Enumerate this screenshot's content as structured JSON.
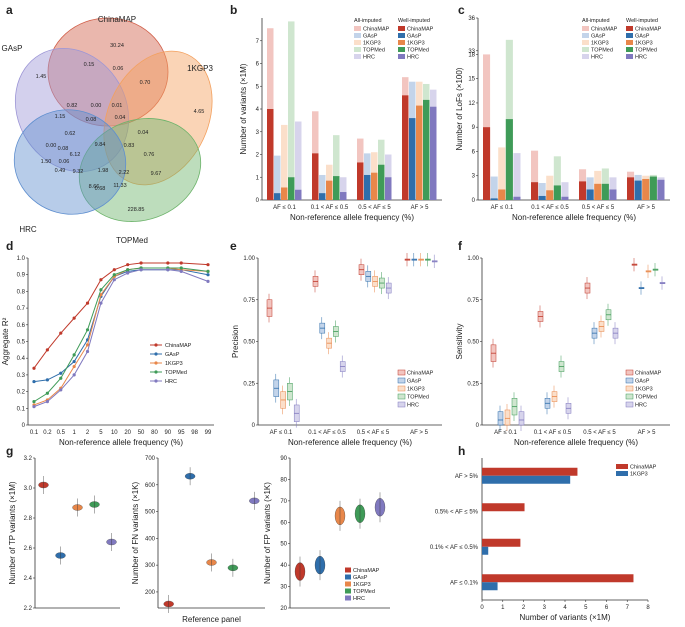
{
  "colors": {
    "chinamap": "#c0392b",
    "gasp": "#2f6eab",
    "kgp3": "#e8874a",
    "topmed": "#3f9b58",
    "hrc": "#8079bf",
    "chinamap_light": "#f2c5c0",
    "gasp_light": "#c3d4ea",
    "kgp3_light": "#fbdfca",
    "topmed_light": "#cfe6cf",
    "hrc_light": "#d7d4ec"
  },
  "panels": {
    "a": {
      "label": "a",
      "sets": [
        {
          "key": "chinamap",
          "name": "ChinaMAP",
          "color": "#d1604a"
        },
        {
          "key": "gasp",
          "name": "GAsP",
          "color": "#9d96d6"
        },
        {
          "key": "kgp3",
          "name": "1KGP3",
          "color": "#f3a05e"
        },
        {
          "key": "topmed",
          "name": "TOPMed",
          "color": "#6cb36a"
        },
        {
          "key": "hrc",
          "name": "HRC",
          "color": "#5f8fcf"
        }
      ],
      "regions": [
        "30.24",
        "1.45",
        "4.65",
        "228.85",
        "1.50",
        "0.15",
        "0.06",
        "0.70",
        "0.82",
        "0.00",
        "0.01",
        "1.15",
        "0.08",
        "0.04",
        "9.84",
        "0.04",
        "0.62",
        "0.83",
        "0.00",
        "0.08",
        "0.76",
        "0.06",
        "6.12",
        "9.67",
        "0.49",
        "9.32",
        "1.98",
        "2.22",
        "8.66",
        "0.68",
        "11.33"
      ]
    },
    "b": {
      "label": "b",
      "legend_all": "All-imputed",
      "legend_well": "Well-imputed",
      "legend_names": [
        "ChinaMAP",
        "GAsP",
        "1KGP3",
        "TOPMed",
        "HRC"
      ]
    },
    "c": {
      "label": "c"
    },
    "d": {
      "label": "d"
    },
    "e": {
      "label": "e"
    },
    "f": {
      "label": "f"
    },
    "g": {
      "label": "g"
    },
    "h": {
      "label": "h"
    }
  },
  "chart_data": [
    {
      "id": "b",
      "type": "bar",
      "title": "",
      "xlabel": "Non-reference allele frequency (%)",
      "ylabel": "Number of variants (×1M)",
      "ylim": [
        0,
        8
      ],
      "yticks": [
        "0",
        "1",
        "2",
        "3",
        "4",
        "5",
        "6",
        "7"
      ],
      "categories": [
        "AF ≤ 0.1",
        "0.1 < AF ≤ 0.5",
        "0.5 < AF ≤ 5",
        "AF > 5"
      ],
      "series": [
        {
          "name": "ChinaMAP",
          "all": [
            7.55,
            3.9,
            2.7,
            5.4
          ],
          "well": [
            4.0,
            2.05,
            1.65,
            4.6
          ]
        },
        {
          "name": "GAsP",
          "all": [
            1.95,
            1.1,
            2.05,
            5.2
          ],
          "well": [
            0.3,
            0.3,
            1.1,
            3.6
          ]
        },
        {
          "name": "1KGP3",
          "all": [
            3.3,
            1.55,
            2.1,
            5.2
          ],
          "well": [
            0.55,
            0.85,
            1.2,
            4.15
          ]
        },
        {
          "name": "TOPMed",
          "all": [
            7.85,
            2.85,
            2.65,
            5.1
          ],
          "well": [
            1.0,
            1.05,
            1.55,
            4.4
          ]
        },
        {
          "name": "HRC",
          "all": [
            3.45,
            1.0,
            2.0,
            4.85
          ],
          "well": [
            0.45,
            0.35,
            1.0,
            4.1
          ]
        }
      ]
    },
    {
      "id": "c",
      "type": "bar",
      "xlabel": "Non-reference allele frequency (%)",
      "ylabel": "Number of LoFs (×100)",
      "ylim": [
        0,
        36
      ],
      "yticks": [
        "0",
        "3",
        "6",
        "9",
        "12",
        "15",
        "18",
        "33",
        "36"
      ],
      "categories": [
        "AF ≤ 0.1",
        "0.1 < AF ≤ 0.5",
        "0.5 < AF ≤ 5",
        "AF > 5"
      ],
      "series": [
        {
          "name": "ChinaMAP",
          "all": [
            18.0,
            6.1,
            3.8,
            3.5
          ],
          "well": [
            9.0,
            2.2,
            2.3,
            2.8
          ]
        },
        {
          "name": "GAsP",
          "all": [
            2.9,
            2.1,
            2.8,
            3.1
          ],
          "well": [
            0.2,
            0.5,
            1.3,
            2.4
          ]
        },
        {
          "name": "1KGP3",
          "all": [
            6.5,
            3.0,
            3.6,
            3.0
          ],
          "well": [
            1.3,
            1.2,
            2.0,
            2.6
          ]
        },
        {
          "name": "TOPMed",
          "all": [
            34.0,
            5.4,
            3.9,
            3.1
          ],
          "well": [
            10.0,
            1.8,
            2.0,
            2.9
          ]
        },
        {
          "name": "HRC",
          "all": [
            5.8,
            2.2,
            2.8,
            2.8
          ],
          "well": [
            0.4,
            0.4,
            1.3,
            2.5
          ]
        }
      ]
    },
    {
      "id": "d",
      "type": "line",
      "xlabel": "Non-reference allele frequency (%)",
      "ylabel": "Aggregate R²",
      "ylim": [
        0,
        1
      ],
      "yticks": [
        "0",
        "0.1",
        "0.2",
        "0.3",
        "0.4",
        "0.5",
        "0.6",
        "0.7",
        "0.8",
        "0.9",
        "1.0"
      ],
      "x": [
        "0.1",
        "0.2",
        "0.5",
        "1",
        "2",
        "5",
        "10",
        "20",
        "50",
        "90",
        "95",
        "99"
      ],
      "xticks": [
        "0.1",
        "0.2",
        "0.5",
        "1",
        "2",
        "5",
        "10",
        "20",
        "50",
        "80",
        "90",
        "95",
        "98",
        "99"
      ],
      "series": [
        {
          "name": "ChinaMAP",
          "y": [
            0.34,
            0.45,
            0.55,
            0.64,
            0.73,
            0.87,
            0.93,
            0.96,
            0.97,
            0.97,
            0.97,
            0.96
          ]
        },
        {
          "name": "GAsP",
          "y": [
            0.26,
            0.27,
            0.31,
            0.38,
            0.51,
            0.77,
            0.89,
            0.92,
            0.93,
            0.93,
            0.93,
            0.9
          ]
        },
        {
          "name": "1KGP3",
          "y": [
            0.12,
            0.15,
            0.22,
            0.35,
            0.48,
            0.78,
            0.89,
            0.93,
            0.94,
            0.94,
            0.93,
            0.92
          ]
        },
        {
          "name": "TOPMed",
          "y": [
            0.14,
            0.19,
            0.28,
            0.42,
            0.57,
            0.81,
            0.9,
            0.93,
            0.94,
            0.94,
            0.94,
            0.92
          ]
        },
        {
          "name": "HRC",
          "y": [
            0.11,
            0.14,
            0.21,
            0.3,
            0.44,
            0.73,
            0.87,
            0.91,
            0.93,
            0.93,
            0.92,
            0.86
          ]
        }
      ]
    },
    {
      "id": "e",
      "type": "box",
      "xlabel": "Non-reference allele frequency (%)",
      "ylabel": "Precision",
      "ylim": [
        0,
        1
      ],
      "yticks": [
        "0",
        "0.25",
        "0.50",
        "0.75",
        "1.00"
      ],
      "categories": [
        "AF ≤ 0.1",
        "0.1 < AF ≤ 0.5",
        "0.5 < AF ≤ 5",
        "AF > 5"
      ],
      "series": [
        {
          "name": "ChinaMAP",
          "median": [
            0.7,
            0.86,
            0.93,
            0.99
          ]
        },
        {
          "name": "GAsP",
          "median": [
            0.22,
            0.58,
            0.89,
            0.99
          ]
        },
        {
          "name": "1KGP3",
          "median": [
            0.15,
            0.49,
            0.86,
            0.99
          ]
        },
        {
          "name": "TOPMed",
          "median": [
            0.2,
            0.56,
            0.85,
            0.99
          ]
        },
        {
          "name": "HRC",
          "median": [
            0.07,
            0.35,
            0.82,
            0.98
          ]
        }
      ]
    },
    {
      "id": "f",
      "type": "box",
      "xlabel": "Non-reference allele frequency (%)",
      "ylabel": "Sensitivity",
      "ylim": [
        0,
        1
      ],
      "yticks": [
        "0",
        "0.25",
        "0.50",
        "0.75",
        "1.00"
      ],
      "categories": [
        "AF ≤ 0.1",
        "0.1 < AF ≤ 0.5",
        "0.5 < AF ≤ 5",
        "AF > 5"
      ],
      "series": [
        {
          "name": "ChinaMAP",
          "median": [
            0.43,
            0.65,
            0.82,
            0.96
          ]
        },
        {
          "name": "GAsP",
          "median": [
            0.03,
            0.13,
            0.55,
            0.82
          ]
        },
        {
          "name": "1KGP3",
          "median": [
            0.04,
            0.17,
            0.59,
            0.92
          ]
        },
        {
          "name": "TOPMed",
          "median": [
            0.11,
            0.35,
            0.66,
            0.93
          ]
        },
        {
          "name": "HRC",
          "median": [
            0.03,
            0.1,
            0.55,
            0.85
          ]
        }
      ]
    },
    {
      "id": "g1",
      "type": "violin",
      "ylabel": "Number of TP variants (×1M)",
      "ylim": [
        2.2,
        3.2
      ],
      "yticks": [
        "2.2",
        "2.4",
        "2.6",
        "2.8",
        "3.0",
        "3.2"
      ],
      "series": [
        {
          "name": "ChinaMAP",
          "median": 3.02
        },
        {
          "name": "GAsP",
          "median": 2.55
        },
        {
          "name": "1KGP3",
          "median": 2.87
        },
        {
          "name": "TOPMed",
          "median": 2.89
        },
        {
          "name": "HRC",
          "median": 2.64
        }
      ]
    },
    {
      "id": "g2",
      "type": "violin",
      "xlabel": "Reference panel",
      "ylabel": "Number of FN variants (×1K)",
      "ylim": [
        140,
        700
      ],
      "yticks": [
        "200",
        "300",
        "400",
        "500",
        "600",
        "700"
      ],
      "series": [
        {
          "name": "ChinaMAP",
          "median": 155
        },
        {
          "name": "GAsP",
          "median": 632
        },
        {
          "name": "1KGP3",
          "median": 310
        },
        {
          "name": "TOPMed",
          "median": 290
        },
        {
          "name": "HRC",
          "median": 540
        }
      ]
    },
    {
      "id": "g3",
      "type": "violin",
      "ylabel": "Number of FP variants (×1K)",
      "ylim": [
        20,
        90
      ],
      "yticks": [
        "20",
        "30",
        "40",
        "50",
        "60",
        "70",
        "80",
        "90"
      ],
      "series": [
        {
          "name": "ChinaMAP",
          "median": 37
        },
        {
          "name": "GAsP",
          "median": 40
        },
        {
          "name": "1KGP3",
          "median": 63
        },
        {
          "name": "TOPMed",
          "median": 64
        },
        {
          "name": "HRC",
          "median": 67
        }
      ]
    },
    {
      "id": "h",
      "type": "barh",
      "xlabel": "Number of variants (×1M)",
      "xlim": [
        0,
        8
      ],
      "xticks": [
        "0",
        "1",
        "2",
        "3",
        "4",
        "5",
        "6",
        "7",
        "8"
      ],
      "categories": [
        "AF > 5%",
        "0.5% < AF ≤ 5%",
        "0.1% < AF ≤ 0.5%",
        "AF ≤ 0.1%"
      ],
      "series": [
        {
          "name": "ChinaMAP",
          "values": [
            4.6,
            2.05,
            1.85,
            7.3
          ]
        },
        {
          "name": "1KGP3",
          "values": [
            4.25,
            0.0,
            0.3,
            0.75
          ]
        }
      ]
    }
  ]
}
